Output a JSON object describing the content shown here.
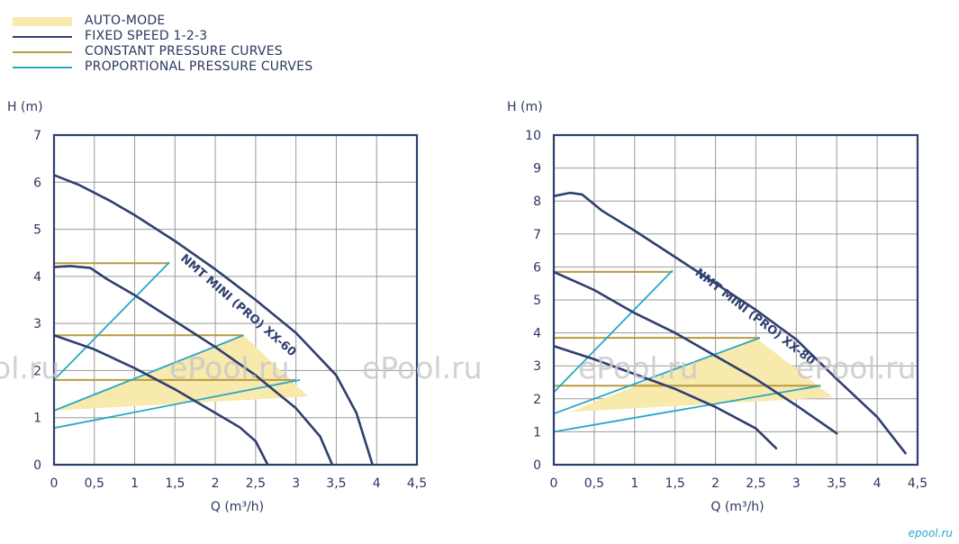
{
  "legend": [
    {
      "label": "AUTO-MODE",
      "type": "fill",
      "color": "#f8e9ad"
    },
    {
      "label": "FIXED SPEED 1-2-3",
      "type": "line",
      "color": "#2f3f70"
    },
    {
      "label": "CONSTANT PRESSURE CURVES",
      "type": "line",
      "color": "#b99a3e"
    },
    {
      "label": "PROPORTIONAL PRESSURE CURVES",
      "type": "line",
      "color": "#27a7c6"
    }
  ],
  "colors": {
    "auto_mode": "#f8e9ad",
    "fixed_speed": "#2f3f70",
    "constant_pressure": "#b99a3e",
    "proportional_pressure": "#27a7c6",
    "grid": "#9a9a9a",
    "frame": "#2f3f70",
    "watermark": "#c9c9c9",
    "brand_mark": "#2aa6d6"
  },
  "watermarks": [
    "ol.ru",
    "ePool.ru",
    "ePool.ru",
    "ePool.ru",
    "ePool.ru"
  ],
  "brand_mark": "epool.ru",
  "chart_data": [
    {
      "type": "line",
      "model_label": "NMT MINI (PRO) XX-60",
      "xlabel": "Q (m³/h)",
      "ylabel": "H (m)",
      "xlim": [
        0,
        4.5
      ],
      "ylim": [
        0,
        7
      ],
      "x_ticks": [
        "0",
        "0,5",
        "1",
        "1,5",
        "2",
        "2,5",
        "3",
        "3,5",
        "4",
        "4,5"
      ],
      "y_ticks": [
        "0",
        "1",
        "2",
        "3",
        "4",
        "5",
        "6",
        "7"
      ],
      "grid": true,
      "auto_mode_region": [
        [
          0,
          1.15
        ],
        [
          2.35,
          2.75
        ],
        [
          3.15,
          1.45
        ]
      ],
      "fixed_speed": [
        {
          "name": "1",
          "points": [
            [
              0,
              2.75
            ],
            [
              0.5,
              2.45
            ],
            [
              1.0,
              2.05
            ],
            [
              1.5,
              1.6
            ],
            [
              2.0,
              1.1
            ],
            [
              2.3,
              0.8
            ],
            [
              2.5,
              0.5
            ],
            [
              2.65,
              0
            ]
          ]
        },
        {
          "name": "2",
          "points": [
            [
              0,
              4.2
            ],
            [
              0.2,
              4.22
            ],
            [
              0.45,
              4.18
            ],
            [
              0.65,
              3.95
            ],
            [
              1.0,
              3.6
            ],
            [
              1.5,
              3.05
            ],
            [
              2.0,
              2.5
            ],
            [
              2.5,
              1.9
            ],
            [
              3.0,
              1.2
            ],
            [
              3.3,
              0.6
            ],
            [
              3.45,
              0
            ]
          ]
        },
        {
          "name": "3",
          "points": [
            [
              0,
              6.15
            ],
            [
              0.3,
              5.95
            ],
            [
              0.7,
              5.6
            ],
            [
              1.0,
              5.3
            ],
            [
              1.5,
              4.75
            ],
            [
              2.0,
              4.15
            ],
            [
              2.5,
              3.5
            ],
            [
              3.0,
              2.8
            ],
            [
              3.5,
              1.9
            ],
            [
              3.75,
              1.1
            ],
            [
              3.95,
              0
            ]
          ]
        }
      ],
      "constant_pressure": [
        {
          "points": [
            [
              0,
              4.28
            ],
            [
              1.43,
              4.28
            ]
          ]
        },
        {
          "points": [
            [
              0,
              2.75
            ],
            [
              2.35,
              2.75
            ]
          ]
        },
        {
          "points": [
            [
              0,
              1.8
            ],
            [
              3.0,
              1.8
            ]
          ]
        }
      ],
      "proportional_pressure": [
        {
          "points": [
            [
              0,
              1.8
            ],
            [
              1.43,
              4.3
            ]
          ]
        },
        {
          "points": [
            [
              0,
              1.15
            ],
            [
              2.35,
              2.75
            ]
          ]
        },
        {
          "points": [
            [
              0,
              0.78
            ],
            [
              3.05,
              1.8
            ]
          ]
        }
      ]
    },
    {
      "type": "line",
      "model_label": "NMT MINI (PRO) XX-80",
      "xlabel": "Q (m³/h)",
      "ylabel": "H (m)",
      "xlim": [
        0,
        4.5
      ],
      "ylim": [
        0,
        10
      ],
      "x_ticks": [
        "0",
        "0,5",
        "1",
        "1,5",
        "2",
        "2,5",
        "3",
        "3,5",
        "4",
        "4,5"
      ],
      "y_ticks": [
        "0",
        "1",
        "2",
        "3",
        "4",
        "5",
        "6",
        "7",
        "8",
        "9",
        "10"
      ],
      "grid": true,
      "auto_mode_region": [
        [
          0.2,
          1.6
        ],
        [
          2.5,
          3.85
        ],
        [
          3.45,
          2.05
        ]
      ],
      "fixed_speed": [
        {
          "name": "1",
          "points": [
            [
              0,
              3.6
            ],
            [
              0.5,
              3.2
            ],
            [
              1.0,
              2.75
            ],
            [
              1.5,
              2.3
            ],
            [
              2.0,
              1.75
            ],
            [
              2.5,
              1.1
            ],
            [
              2.75,
              0.5
            ]
          ]
        },
        {
          "name": "2",
          "points": [
            [
              0,
              5.85
            ],
            [
              0.5,
              5.3
            ],
            [
              1.0,
              4.6
            ],
            [
              1.5,
              4.0
            ],
            [
              2.0,
              3.3
            ],
            [
              2.5,
              2.6
            ],
            [
              3.0,
              1.8
            ],
            [
              3.5,
              0.95
            ]
          ]
        },
        {
          "name": "3",
          "points": [
            [
              0,
              8.15
            ],
            [
              0.2,
              8.25
            ],
            [
              0.35,
              8.2
            ],
            [
              0.6,
              7.7
            ],
            [
              1.0,
              7.1
            ],
            [
              1.5,
              6.3
            ],
            [
              2.0,
              5.5
            ],
            [
              2.5,
              4.7
            ],
            [
              3.0,
              3.8
            ],
            [
              3.5,
              2.6
            ],
            [
              4.0,
              1.45
            ],
            [
              4.35,
              0.35
            ]
          ]
        }
      ],
      "constant_pressure": [
        {
          "points": [
            [
              0,
              5.85
            ],
            [
              1.47,
              5.85
            ]
          ]
        },
        {
          "points": [
            [
              0,
              3.85
            ],
            [
              2.55,
              3.85
            ]
          ]
        },
        {
          "points": [
            [
              0,
              2.4
            ],
            [
              3.3,
              2.4
            ]
          ]
        }
      ],
      "proportional_pressure": [
        {
          "points": [
            [
              0,
              2.2
            ],
            [
              1.47,
              5.9
            ]
          ]
        },
        {
          "points": [
            [
              0,
              1.55
            ],
            [
              2.55,
              3.85
            ]
          ]
        },
        {
          "points": [
            [
              0,
              1.0
            ],
            [
              3.3,
              2.4
            ]
          ]
        }
      ]
    }
  ]
}
